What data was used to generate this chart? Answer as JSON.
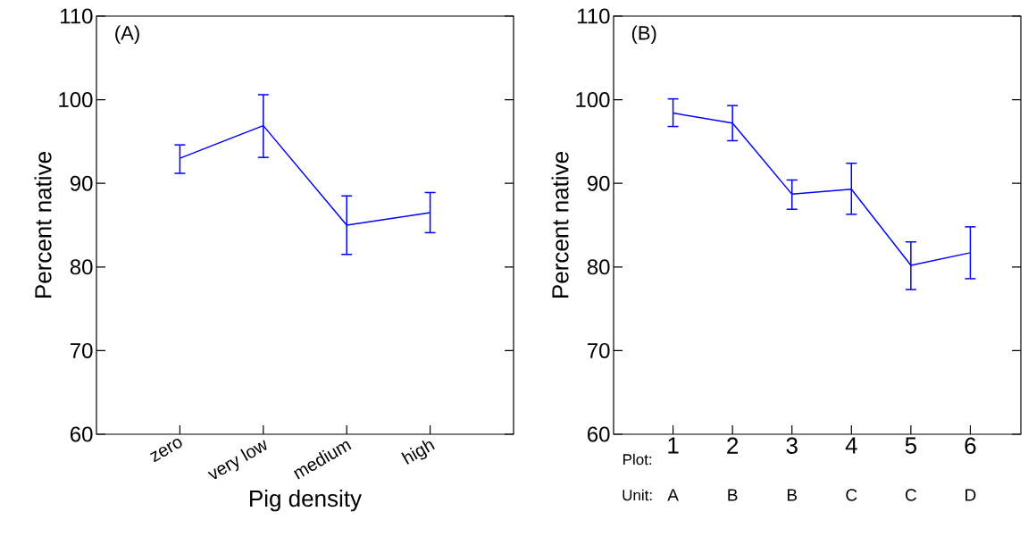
{
  "chart_data": [
    {
      "type": "line",
      "xlabel": "Pig density",
      "ylabel": "Percent native",
      "annotations": [
        "(A)"
      ],
      "categories": [
        "zero",
        "very low",
        "medium",
        "high"
      ],
      "series": [
        {
          "color": "#0000ff",
          "values": [
            93.0,
            96.9,
            85.0,
            86.5
          ],
          "errors": [
            [
              91.2,
              94.6
            ],
            [
              93.1,
              100.6
            ],
            [
              81.5,
              88.5
            ],
            [
              84.1,
              88.9
            ]
          ]
        }
      ],
      "ylim": [
        60,
        110
      ],
      "yticks": [
        60,
        70,
        80,
        90,
        100,
        110
      ],
      "grid": false,
      "marker": "none",
      "line_style": "solid"
    },
    {
      "type": "line",
      "ylabel": "Percent native",
      "annotations": [
        "(B)",
        "Plot:",
        "Unit:",
        "A",
        "B",
        "B",
        "C",
        "C",
        "D"
      ],
      "categories": [
        "1",
        "2",
        "3",
        "4",
        "5",
        "6"
      ],
      "series": [
        {
          "color": "#0000ff",
          "values": [
            98.4,
            97.2,
            88.7,
            89.3,
            80.2,
            81.7
          ],
          "errors": [
            [
              96.8,
              100.1
            ],
            [
              95.1,
              99.3
            ],
            [
              86.9,
              90.4
            ],
            [
              86.3,
              92.4
            ],
            [
              77.3,
              83.0
            ],
            [
              78.6,
              84.8
            ]
          ]
        }
      ],
      "ylim": [
        60,
        110
      ],
      "yticks": [
        60,
        70,
        80,
        90,
        100,
        110
      ],
      "grid": false,
      "marker": "none",
      "line_style": "solid"
    }
  ]
}
